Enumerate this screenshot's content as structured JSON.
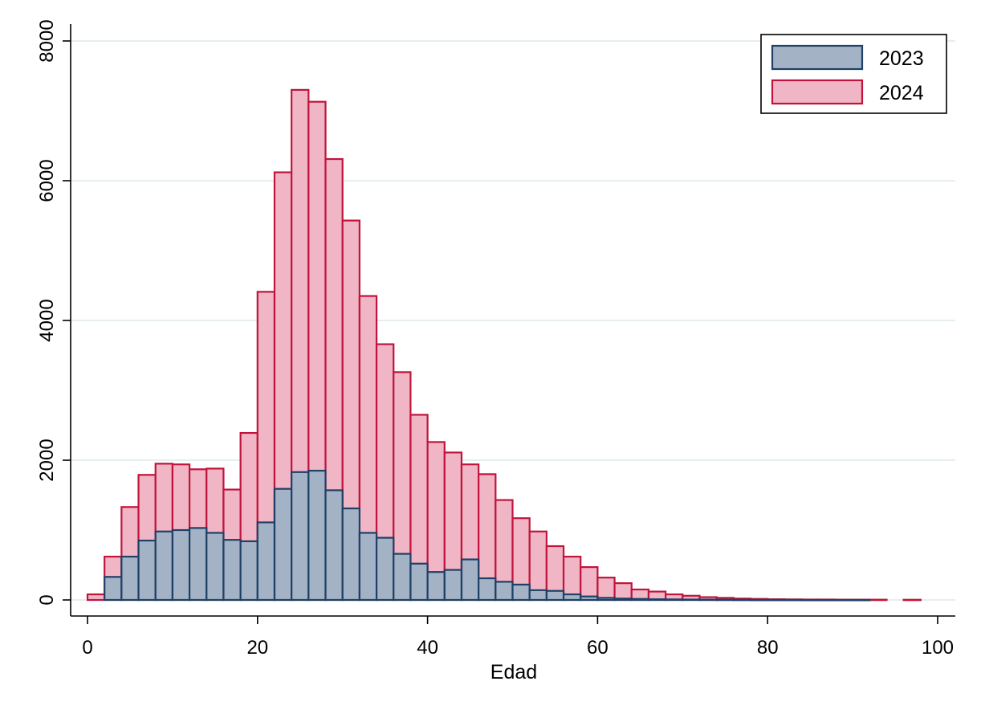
{
  "chart_data": {
    "type": "bar",
    "title": "",
    "xlabel": "Edad",
    "ylabel": "",
    "xlim": [
      0,
      100
    ],
    "ylim": [
      0,
      8000
    ],
    "x_ticks": [
      0,
      20,
      40,
      60,
      80,
      100
    ],
    "y_ticks": [
      0,
      2000,
      4000,
      6000,
      8000
    ],
    "x_tick_labels": [
      "0",
      "20",
      "40",
      "60",
      "80",
      "100"
    ],
    "y_tick_labels": [
      "0",
      "2000",
      "4000",
      "6000",
      "8000"
    ],
    "grid": "horizontal",
    "legend": "top-right",
    "bin_width": 2,
    "bin_starts": [
      0,
      2,
      4,
      6,
      8,
      10,
      12,
      14,
      16,
      18,
      20,
      22,
      24,
      26,
      28,
      30,
      32,
      34,
      36,
      38,
      40,
      42,
      44,
      46,
      48,
      50,
      52,
      54,
      56,
      58,
      60,
      62,
      64,
      66,
      68,
      70,
      72,
      74,
      76,
      78,
      80,
      82,
      84,
      86,
      88,
      90,
      92,
      94,
      96
    ],
    "series": [
      {
        "name": "2023",
        "color": "#a3b2c4",
        "edge": "#1f4066",
        "values": [
          0,
          330,
          620,
          850,
          980,
          1000,
          1030,
          960,
          860,
          840,
          1110,
          1590,
          1830,
          1850,
          1570,
          1310,
          960,
          890,
          660,
          520,
          400,
          430,
          580,
          310,
          260,
          220,
          140,
          130,
          80,
          50,
          30,
          20,
          15,
          10,
          8,
          6,
          5,
          4,
          3,
          2,
          2,
          2,
          1,
          1,
          1,
          1,
          0,
          0,
          0
        ]
      },
      {
        "name": "2024",
        "color": "#f1b6c5",
        "edge": "#c0143c",
        "values": [
          80,
          620,
          1330,
          1790,
          1950,
          1940,
          1870,
          1880,
          1580,
          2390,
          4410,
          6120,
          7300,
          7130,
          6310,
          5430,
          4350,
          3660,
          3260,
          2650,
          2260,
          2110,
          1940,
          1800,
          1430,
          1170,
          980,
          770,
          620,
          470,
          320,
          240,
          150,
          120,
          80,
          60,
          40,
          30,
          20,
          15,
          10,
          8,
          6,
          6,
          4,
          4,
          4,
          0,
          3
        ]
      }
    ]
  }
}
